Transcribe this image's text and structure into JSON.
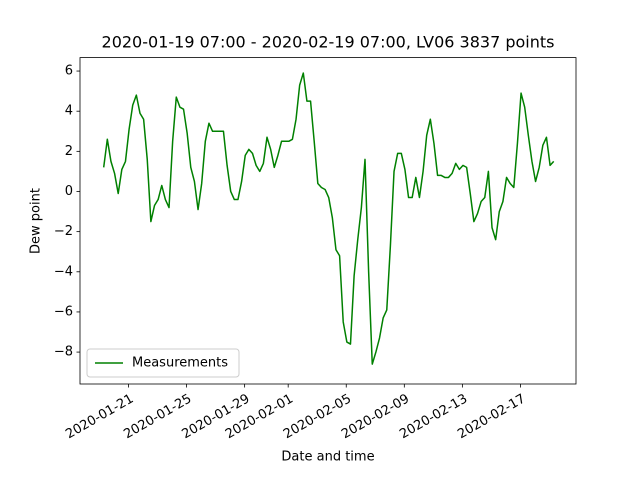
{
  "chart_data": {
    "type": "line",
    "title": "2020-01-19 07:00 - 2020-02-19 07:00, LV06 3837 points",
    "xlabel": "Date and time",
    "ylabel": "Dew point",
    "x": [
      "2020-01-19 07:00",
      "2020-01-19 13:00",
      "2020-01-19 19:00",
      "2020-01-20 01:00",
      "2020-01-20 07:00",
      "2020-01-20 13:00",
      "2020-01-20 19:00",
      "2020-01-21 01:00",
      "2020-01-21 07:00",
      "2020-01-21 13:00",
      "2020-01-21 19:00",
      "2020-01-22 01:00",
      "2020-01-22 07:00",
      "2020-01-22 13:00",
      "2020-01-22 19:00",
      "2020-01-23 01:00",
      "2020-01-23 07:00",
      "2020-01-23 13:00",
      "2020-01-23 19:00",
      "2020-01-24 01:00",
      "2020-01-24 07:00",
      "2020-01-24 13:00",
      "2020-01-24 19:00",
      "2020-01-25 01:00",
      "2020-01-25 07:00",
      "2020-01-25 13:00",
      "2020-01-25 19:00",
      "2020-01-26 01:00",
      "2020-01-26 07:00",
      "2020-01-26 13:00",
      "2020-01-26 19:00",
      "2020-01-27 01:00",
      "2020-01-27 07:00",
      "2020-01-27 13:00",
      "2020-01-27 19:00",
      "2020-01-28 01:00",
      "2020-01-28 07:00",
      "2020-01-28 13:00",
      "2020-01-28 19:00",
      "2020-01-29 01:00",
      "2020-01-29 07:00",
      "2020-01-29 13:00",
      "2020-01-29 19:00",
      "2020-01-30 01:00",
      "2020-01-30 07:00",
      "2020-01-30 13:00",
      "2020-01-30 19:00",
      "2020-01-31 01:00",
      "2020-01-31 07:00",
      "2020-01-31 13:00",
      "2020-01-31 19:00",
      "2020-02-01 01:00",
      "2020-02-01 07:00",
      "2020-02-01 13:00",
      "2020-02-01 19:00",
      "2020-02-02 01:00",
      "2020-02-02 07:00",
      "2020-02-02 13:00",
      "2020-02-02 19:00",
      "2020-02-03 01:00",
      "2020-02-03 07:00",
      "2020-02-03 13:00",
      "2020-02-03 19:00",
      "2020-02-04 01:00",
      "2020-02-04 07:00",
      "2020-02-04 13:00",
      "2020-02-04 19:00",
      "2020-02-05 01:00",
      "2020-02-05 07:00",
      "2020-02-05 13:00",
      "2020-02-05 19:00",
      "2020-02-06 01:00",
      "2020-02-06 07:00",
      "2020-02-06 13:00",
      "2020-02-06 19:00",
      "2020-02-07 01:00",
      "2020-02-07 07:00",
      "2020-02-07 13:00",
      "2020-02-07 19:00",
      "2020-02-08 01:00",
      "2020-02-08 07:00",
      "2020-02-08 13:00",
      "2020-02-08 19:00",
      "2020-02-09 01:00",
      "2020-02-09 07:00",
      "2020-02-09 13:00",
      "2020-02-09 19:00",
      "2020-02-10 01:00",
      "2020-02-10 07:00",
      "2020-02-10 13:00",
      "2020-02-10 19:00",
      "2020-02-11 01:00",
      "2020-02-11 07:00",
      "2020-02-11 13:00",
      "2020-02-11 19:00",
      "2020-02-12 01:00",
      "2020-02-12 07:00",
      "2020-02-12 13:00",
      "2020-02-12 19:00",
      "2020-02-13 01:00",
      "2020-02-13 07:00",
      "2020-02-13 13:00",
      "2020-02-13 19:00",
      "2020-02-14 01:00",
      "2020-02-14 07:00",
      "2020-02-14 13:00",
      "2020-02-14 19:00",
      "2020-02-15 01:00",
      "2020-02-15 07:00",
      "2020-02-15 13:00",
      "2020-02-15 19:00",
      "2020-02-16 01:00",
      "2020-02-16 07:00",
      "2020-02-16 13:00",
      "2020-02-16 19:00",
      "2020-02-17 01:00",
      "2020-02-17 07:00",
      "2020-02-17 13:00",
      "2020-02-17 19:00",
      "2020-02-18 01:00",
      "2020-02-18 07:00",
      "2020-02-18 13:00",
      "2020-02-18 19:00",
      "2020-02-19 01:00",
      "2020-02-19 07:00"
    ],
    "series": [
      {
        "name": "Measurements",
        "color": "green",
        "values": [
          1.2,
          2.6,
          1.5,
          0.9,
          -0.1,
          1.1,
          1.5,
          3.1,
          4.3,
          4.8,
          3.9,
          3.6,
          1.6,
          -1.5,
          -0.7,
          -0.4,
          0.3,
          -0.4,
          -0.8,
          2.5,
          4.7,
          4.2,
          4.1,
          2.9,
          1.2,
          0.5,
          -0.9,
          0.4,
          2.5,
          3.4,
          3.0,
          3.0,
          3.0,
          3.0,
          1.3,
          0.0,
          -0.4,
          -0.4,
          0.5,
          1.8,
          2.1,
          1.9,
          1.3,
          1.0,
          1.4,
          2.7,
          2.1,
          1.2,
          1.8,
          2.5,
          2.5,
          2.5,
          2.6,
          3.6,
          5.3,
          5.9,
          4.5,
          4.5,
          2.5,
          0.4,
          0.2,
          0.1,
          -0.3,
          -1.3,
          -2.9,
          -3.2,
          -6.5,
          -7.5,
          -7.6,
          -4.2,
          -2.4,
          -0.8,
          1.6,
          -4.0,
          -8.6,
          -8.0,
          -7.3,
          -6.3,
          -5.9,
          -2.7,
          1.0,
          1.9,
          1.9,
          1.1,
          -0.3,
          -0.3,
          0.7,
          -0.3,
          1.0,
          2.8,
          3.6,
          2.4,
          0.8,
          0.8,
          0.7,
          0.7,
          0.9,
          1.4,
          1.1,
          1.3,
          1.2,
          -0.1,
          -1.5,
          -1.1,
          -0.5,
          -0.3,
          1.0,
          -1.8,
          -2.4,
          -1.0,
          -0.5,
          0.7,
          0.4,
          0.2,
          2.4,
          4.9,
          4.2,
          2.8,
          1.5,
          0.5,
          1.2,
          2.3,
          2.7,
          1.3,
          1.5
        ]
      }
    ],
    "xlim": [
      "2020-01-17 15:50",
      "2020-02-20 19:50"
    ],
    "xticks": [
      "2020-01-21",
      "2020-01-25",
      "2020-01-29",
      "2020-02-01",
      "2020-02-05",
      "2020-02-09",
      "2020-02-13",
      "2020-02-17"
    ],
    "ylim": [
      -9.59,
      6.67
    ],
    "yticks": [
      {
        "value": -8,
        "label": "−8"
      },
      {
        "value": -6,
        "label": "−6"
      },
      {
        "value": -4,
        "label": "−4"
      },
      {
        "value": -2,
        "label": "−2"
      },
      0,
      2,
      4,
      6
    ],
    "legend": "lower left"
  }
}
